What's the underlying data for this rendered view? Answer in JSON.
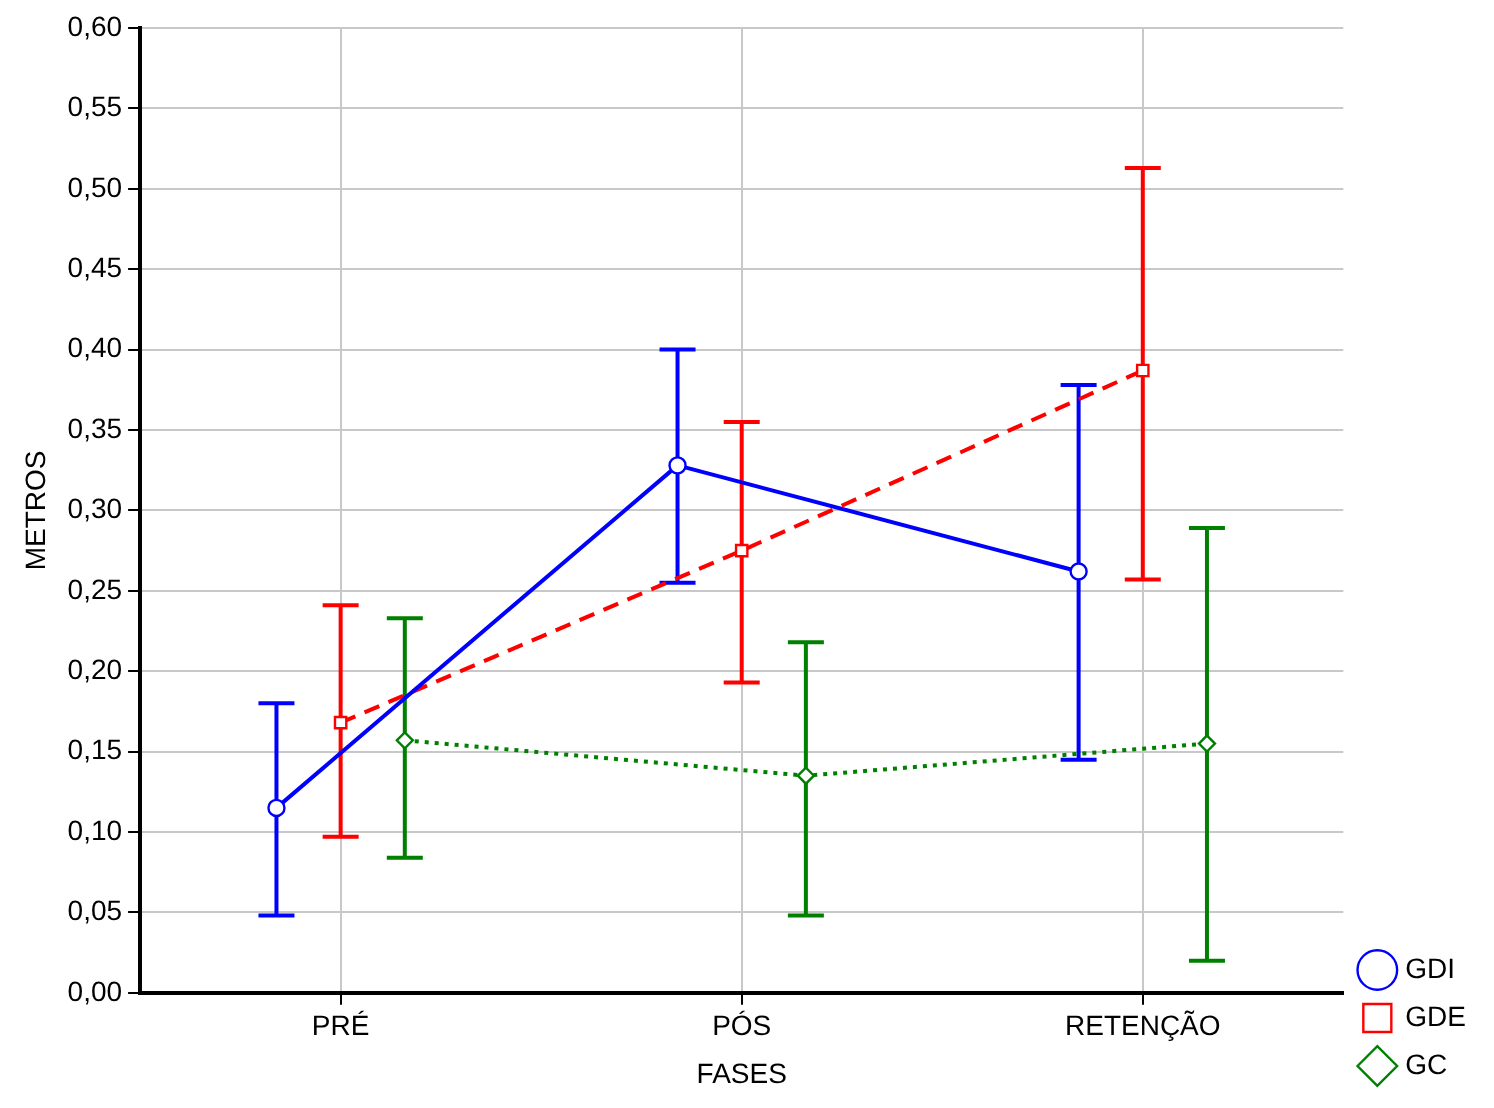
{
  "chart_data": {
    "type": "line",
    "xlabel": "FASES",
    "ylabel": "METROS",
    "categories": [
      "PRÉ",
      "PÓS",
      "RETENÇÃO"
    ],
    "series": [
      {
        "name": "GDI",
        "color": "#0000ff",
        "marker": "circle",
        "line_style": "solid",
        "values": [
          0.115,
          0.328,
          0.262
        ],
        "errors": [
          [
            0.048,
            0.18
          ],
          [
            0.255,
            0.4
          ],
          [
            0.145,
            0.378
          ]
        ]
      },
      {
        "name": "GDE",
        "color": "#ff0000",
        "marker": "square",
        "line_style": "dashed",
        "values": [
          0.168,
          0.275,
          0.387
        ],
        "errors": [
          [
            0.097,
            0.241
          ],
          [
            0.193,
            0.355
          ],
          [
            0.257,
            0.513
          ]
        ]
      },
      {
        "name": "GC",
        "color": "#008000",
        "marker": "diamond",
        "line_style": "dotted",
        "values": [
          0.157,
          0.135,
          0.155
        ],
        "errors": [
          [
            0.084,
            0.233
          ],
          [
            0.048,
            0.218
          ],
          [
            0.02,
            0.289
          ]
        ]
      }
    ],
    "ylim": [
      0,
      0.6
    ],
    "yticks": [
      {
        "value": 0,
        "label": "0,00"
      },
      {
        "value": 0.05,
        "label": "0,05"
      },
      {
        "value": 0.1,
        "label": "0,10"
      },
      {
        "value": 0.15,
        "label": "0,15"
      },
      {
        "value": 0.2,
        "label": "0,20"
      },
      {
        "value": 0.25,
        "label": "0,25"
      },
      {
        "value": 0.3,
        "label": "0,30"
      },
      {
        "value": 0.35,
        "label": "0,35"
      },
      {
        "value": 0.4,
        "label": "0,40"
      },
      {
        "value": 0.45,
        "label": "0,45"
      },
      {
        "value": 0.5,
        "label": "0,50"
      },
      {
        "value": 0.55,
        "label": "0,55"
      },
      {
        "value": 0.6,
        "label": "0,60"
      }
    ],
    "grid": true,
    "legend": "bottom right"
  }
}
